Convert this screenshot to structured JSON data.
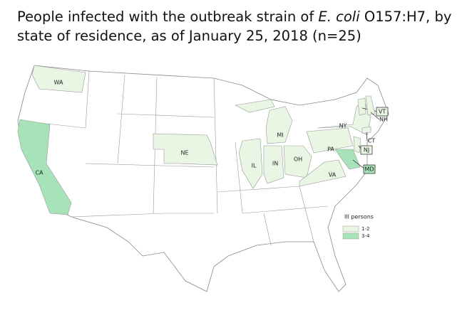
{
  "title": {
    "before": "People infected with the outbreak strain of ",
    "italic": "E. coli",
    "after": " O157:H7, by state of residence, as of January 25, 2018 (n=25)"
  },
  "legend": {
    "title": "Ill persons",
    "items": [
      {
        "label": "1-2",
        "color": "#eaf6e4"
      },
      {
        "label": "3-4",
        "color": "#a6e3b8"
      }
    ]
  },
  "states": [
    {
      "label": "WA",
      "color": "#eaf6e4"
    },
    {
      "label": "CA",
      "color": "#a6e3b8"
    },
    {
      "label": "NE",
      "color": "#eaf6e4"
    },
    {
      "label": "IL",
      "color": "#eaf6e4"
    },
    {
      "label": "IN",
      "color": "#eaf6e4"
    },
    {
      "label": "MI",
      "color": "#eaf6e4"
    },
    {
      "label": "OH",
      "color": "#eaf6e4"
    },
    {
      "label": "PA",
      "color": "#eaf6e4"
    },
    {
      "label": "NY",
      "color": "#eaf6e4"
    },
    {
      "label": "VA",
      "color": "#eaf6e4"
    },
    {
      "label": "MD",
      "color": "#a6e3b8"
    },
    {
      "label": "NJ",
      "color": "#eaf6e4"
    },
    {
      "label": "CT",
      "color": "#eaf6e4"
    },
    {
      "label": "VT",
      "color": "#eaf6e4"
    },
    {
      "label": "NH",
      "color": "#eaf6e4"
    }
  ]
}
